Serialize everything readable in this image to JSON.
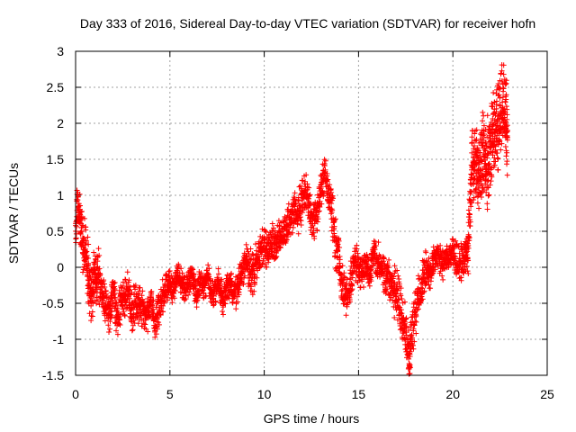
{
  "chart_data": {
    "type": "scatter",
    "title": "Day 333 of 2016, Sidereal Day-to-day VTEC variation (SDTVAR) for receiver hofn",
    "xlabel": "GPS time / hours",
    "ylabel": "SDTVAR / TECUs",
    "xlim": [
      0,
      25
    ],
    "ylim": [
      -1.5,
      3
    ],
    "xticks": [
      "0",
      "5",
      "10",
      "15",
      "20",
      "25"
    ],
    "yticks": [
      "-1.5",
      "-1",
      "-0.5",
      "0",
      "0.5",
      "1",
      "1.5",
      "2",
      "2.5",
      "3"
    ],
    "grid": true,
    "marker": "+",
    "series": [
      {
        "name": "hofn",
        "color": "#ff0000",
        "x": [
          0.0,
          0.1,
          0.2,
          0.3,
          0.4,
          0.5,
          0.6,
          0.7,
          0.8,
          0.9,
          1.0,
          1.1,
          1.2,
          1.4,
          1.6,
          1.8,
          2.0,
          2.2,
          2.4,
          2.6,
          2.8,
          3.0,
          3.2,
          3.4,
          3.6,
          3.8,
          4.0,
          4.2,
          4.4,
          4.6,
          4.8,
          5.0,
          5.2,
          5.4,
          5.6,
          5.8,
          6.0,
          6.2,
          6.4,
          6.6,
          6.8,
          7.0,
          7.2,
          7.4,
          7.6,
          7.8,
          8.0,
          8.2,
          8.4,
          8.6,
          8.8,
          9.0,
          9.2,
          9.4,
          9.6,
          9.8,
          10.0,
          10.2,
          10.4,
          10.6,
          10.8,
          11.0,
          11.2,
          11.4,
          11.6,
          11.8,
          12.0,
          12.2,
          12.4,
          12.6,
          12.8,
          13.0,
          13.2,
          13.4,
          13.6,
          13.8,
          14.0,
          14.2,
          14.4,
          14.6,
          14.8,
          15.0,
          15.2,
          15.4,
          15.6,
          15.8,
          16.0,
          16.2,
          16.4,
          16.6,
          16.8,
          17.0,
          17.2,
          17.4,
          17.6,
          17.7,
          17.8,
          18.0,
          18.2,
          18.4,
          18.6,
          18.8,
          19.0,
          19.2,
          19.4,
          19.6,
          19.8,
          20.0,
          20.2,
          20.4,
          20.6,
          20.8,
          21.0,
          21.2,
          21.4,
          21.6,
          21.8,
          22.0,
          22.2,
          22.4,
          22.6,
          22.8,
          22.9
        ],
        "values": [
          0.4,
          0.9,
          0.75,
          0.5,
          0.3,
          0.2,
          0.1,
          -0.2,
          -0.5,
          -0.3,
          0.0,
          -0.2,
          -0.1,
          -0.3,
          -0.5,
          -0.6,
          -0.3,
          -0.7,
          -0.5,
          -0.4,
          -0.3,
          -0.6,
          -0.5,
          -0.5,
          -0.6,
          -0.7,
          -0.4,
          -0.8,
          -0.6,
          -0.4,
          -0.3,
          -0.2,
          -0.3,
          -0.1,
          -0.2,
          -0.3,
          -0.2,
          -0.1,
          -0.4,
          -0.2,
          -0.3,
          -0.1,
          -0.4,
          -0.3,
          -0.2,
          -0.5,
          -0.3,
          -0.2,
          -0.4,
          -0.3,
          -0.1,
          0.05,
          0.0,
          -0.1,
          0.1,
          0.2,
          0.3,
          0.2,
          0.4,
          0.3,
          0.5,
          0.4,
          0.55,
          0.7,
          0.8,
          0.75,
          0.95,
          1.1,
          0.8,
          0.6,
          0.8,
          1.05,
          1.3,
          1.1,
          0.7,
          0.3,
          0.0,
          -0.3,
          -0.4,
          -0.2,
          0.1,
          0.0,
          -0.1,
          0.05,
          -0.1,
          0.2,
          0.1,
          0.0,
          -0.2,
          -0.1,
          -0.3,
          -0.4,
          -0.5,
          -0.7,
          -1.1,
          -1.3,
          -0.9,
          -0.6,
          -0.4,
          -0.2,
          0.0,
          -0.1,
          0.1,
          0.2,
          0.0,
          0.15,
          0.1,
          0.2,
          0.1,
          0.05,
          0.1,
          0.2,
          1.4,
          1.5,
          1.3,
          1.6,
          1.4,
          1.7,
          1.9,
          2.0,
          2.3,
          2.1,
          1.8
        ],
        "spread": [
          0.15,
          0.35,
          0.4,
          0.4,
          0.45,
          0.5,
          0.45,
          0.5,
          0.55,
          0.5,
          0.45,
          0.4,
          0.45,
          0.35,
          0.3,
          0.35,
          0.3,
          0.35,
          0.3,
          0.3,
          0.3,
          0.35,
          0.35,
          0.3,
          0.3,
          0.3,
          0.3,
          0.3,
          0.3,
          0.25,
          0.25,
          0.25,
          0.25,
          0.25,
          0.2,
          0.2,
          0.2,
          0.2,
          0.25,
          0.2,
          0.2,
          0.2,
          0.25,
          0.2,
          0.2,
          0.25,
          0.2,
          0.2,
          0.25,
          0.25,
          0.25,
          0.3,
          0.35,
          0.35,
          0.3,
          0.3,
          0.3,
          0.3,
          0.3,
          0.3,
          0.3,
          0.3,
          0.3,
          0.3,
          0.3,
          0.35,
          0.35,
          0.3,
          0.3,
          0.3,
          0.3,
          0.3,
          0.3,
          0.35,
          0.4,
          0.4,
          0.35,
          0.35,
          0.3,
          0.3,
          0.3,
          0.3,
          0.3,
          0.25,
          0.25,
          0.25,
          0.3,
          0.3,
          0.35,
          0.35,
          0.4,
          0.45,
          0.45,
          0.4,
          0.35,
          0.3,
          0.4,
          0.4,
          0.35,
          0.3,
          0.3,
          0.25,
          0.25,
          0.25,
          0.25,
          0.2,
          0.2,
          0.25,
          0.3,
          0.3,
          0.35,
          0.35,
          0.5,
          0.55,
          0.6,
          0.65,
          0.7,
          0.7,
          0.75,
          0.8,
          0.7,
          0.75,
          0.7
        ]
      }
    ]
  }
}
